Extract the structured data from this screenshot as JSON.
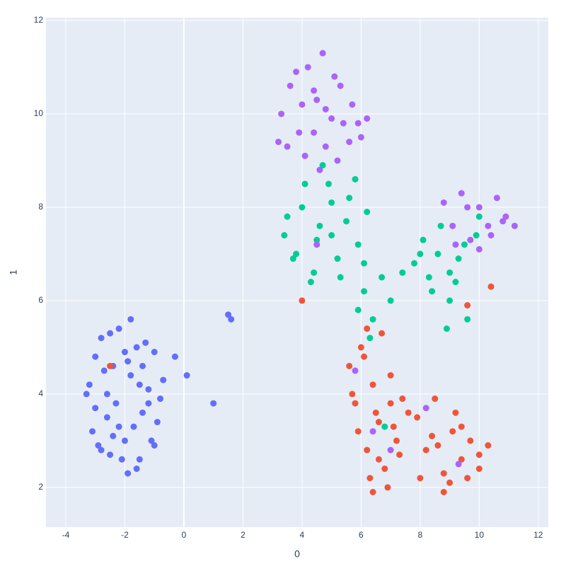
{
  "chart_data": {
    "type": "scatter",
    "x_label": "0",
    "y_label": "1",
    "xlim": [
      -4.67,
      12.34
    ],
    "ylim": [
      1.15,
      12.06
    ],
    "xticks": [
      -4,
      -2,
      0,
      2,
      4,
      6,
      8,
      10,
      12
    ],
    "yticks": [
      2,
      4,
      6,
      8,
      10,
      12
    ],
    "grid": true,
    "series": [
      {
        "color": "#636efa",
        "x": [
          -3.2,
          -3.0,
          -2.8,
          -2.6,
          -2.4,
          -2.2,
          -2.0,
          -1.8,
          -1.6,
          -1.4,
          -1.2,
          -1.0,
          -0.8,
          -3.3,
          -3.1,
          -2.9,
          -2.7,
          -2.5,
          -2.3,
          -2.1,
          -1.9,
          -1.7,
          -1.5,
          -1.3,
          -1.1,
          -0.9,
          -0.7,
          -3.0,
          -2.6,
          -2.2,
          -1.8,
          -1.4,
          -1.0,
          -2.8,
          -2.4,
          -2.0,
          -1.6,
          -1.2,
          -2.5,
          -1.9,
          -1.5,
          1.5,
          1.6,
          1.0,
          -0.3,
          0.1
        ],
        "values": [
          4.2,
          4.8,
          5.2,
          3.5,
          4.6,
          5.4,
          3.0,
          4.4,
          5.0,
          3.6,
          4.1,
          4.9,
          3.9,
          4.0,
          3.2,
          2.9,
          4.5,
          2.7,
          3.8,
          2.6,
          4.7,
          3.3,
          2.6,
          5.1,
          3.0,
          3.4,
          4.3,
          3.7,
          4.0,
          3.3,
          5.6,
          4.6,
          2.9,
          2.8,
          3.1,
          4.9,
          2.4,
          3.8,
          5.3,
          2.3,
          4.2,
          5.7,
          5.6,
          3.8,
          4.8,
          4.4
        ]
      },
      {
        "color": "#ef553b",
        "x": [
          5.6,
          5.8,
          6.0,
          6.2,
          6.4,
          6.6,
          6.8,
          7.0,
          7.2,
          7.4,
          5.7,
          5.9,
          6.1,
          6.3,
          6.5,
          6.7,
          6.9,
          7.1,
          7.3,
          7.6,
          6.2,
          6.6,
          7.0,
          6.4,
          7.9,
          8.2,
          8.5,
          8.8,
          9.1,
          9.4,
          9.7,
          10.0,
          10.3,
          8.0,
          8.4,
          8.8,
          9.2,
          9.6,
          10.0,
          8.6,
          9.0,
          9.4,
          4.0,
          10.4,
          -2.5,
          9.6
        ],
        "values": [
          4.6,
          3.8,
          5.0,
          2.8,
          4.2,
          3.4,
          2.4,
          4.4,
          3.0,
          3.9,
          4.0,
          3.2,
          4.8,
          2.2,
          3.6,
          5.3,
          2.0,
          3.3,
          2.7,
          3.6,
          5.4,
          2.6,
          3.8,
          1.9,
          3.5,
          2.8,
          3.9,
          2.3,
          3.2,
          2.6,
          3.0,
          2.4,
          2.9,
          2.2,
          3.1,
          1.9,
          3.6,
          2.2,
          2.7,
          2.9,
          2.1,
          3.3,
          6.0,
          6.3,
          4.6,
          5.9
        ]
      },
      {
        "color": "#00cc96",
        "x": [
          3.5,
          3.8,
          4.1,
          4.4,
          4.7,
          5.0,
          5.3,
          5.6,
          5.9,
          6.2,
          3.7,
          4.0,
          4.3,
          4.6,
          4.9,
          5.2,
          5.5,
          5.8,
          6.1,
          4.5,
          5.0,
          3.4,
          7.8,
          8.1,
          8.4,
          8.7,
          9.0,
          9.3,
          9.6,
          9.9,
          8.3,
          8.6,
          8.9,
          9.2,
          9.5,
          8.0,
          9.0,
          10.0,
          6.1,
          6.4,
          6.7,
          7.0,
          6.3,
          5.9,
          7.4,
          6.8
        ],
        "values": [
          7.8,
          7.0,
          8.5,
          6.6,
          8.9,
          7.4,
          6.5,
          8.2,
          7.2,
          7.9,
          6.9,
          8.0,
          6.4,
          7.6,
          8.5,
          6.9,
          7.7,
          8.6,
          6.8,
          7.3,
          8.1,
          7.4,
          6.8,
          7.3,
          6.2,
          7.6,
          6.0,
          6.9,
          5.6,
          7.4,
          6.5,
          7.0,
          5.4,
          6.4,
          7.2,
          7.0,
          6.6,
          7.8,
          6.2,
          5.6,
          6.5,
          6.0,
          5.2,
          5.8,
          6.6,
          3.3
        ]
      },
      {
        "color": "#ab63fa",
        "x": [
          3.3,
          3.6,
          3.9,
          4.2,
          4.5,
          4.8,
          5.1,
          5.4,
          5.7,
          6.0,
          3.5,
          3.8,
          4.1,
          4.4,
          4.7,
          5.0,
          5.3,
          5.6,
          5.9,
          4.0,
          4.4,
          4.8,
          5.2,
          4.6,
          3.2,
          6.2,
          8.8,
          9.1,
          9.4,
          9.7,
          10.0,
          10.3,
          10.6,
          10.9,
          9.2,
          9.6,
          10.0,
          10.4,
          10.8,
          11.2,
          6.4,
          7.0,
          8.2,
          9.3,
          5.8,
          4.5
        ],
        "values": [
          10.0,
          10.6,
          9.6,
          11.0,
          10.3,
          9.3,
          10.8,
          9.8,
          10.2,
          9.5,
          9.3,
          10.9,
          9.1,
          10.5,
          11.3,
          9.9,
          10.6,
          9.4,
          9.8,
          10.2,
          9.6,
          10.1,
          9.0,
          8.8,
          9.4,
          9.9,
          8.1,
          7.6,
          8.3,
          7.3,
          8.0,
          7.6,
          8.2,
          7.8,
          7.2,
          8.0,
          7.1,
          7.4,
          7.7,
          7.6,
          3.2,
          2.8,
          3.7,
          2.5,
          4.5,
          7.2
        ]
      }
    ]
  }
}
